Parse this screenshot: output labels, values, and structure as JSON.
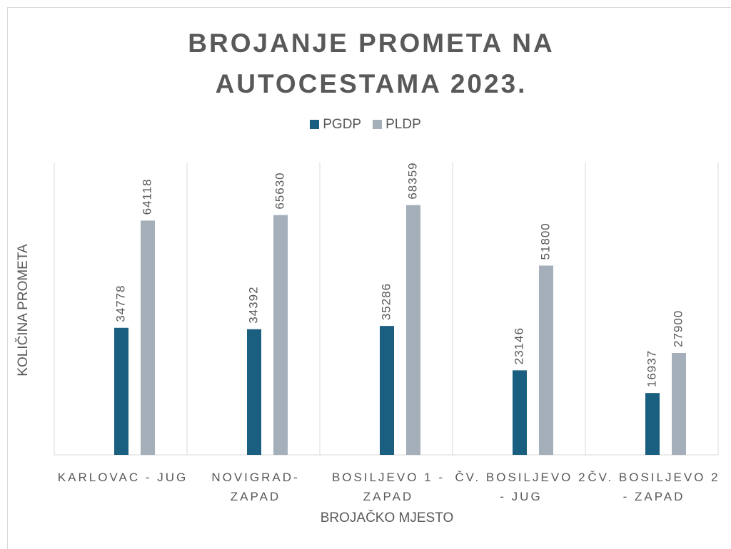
{
  "chart_data": {
    "type": "bar",
    "title": "BROJANJE PROMETA NA AUTOCESTAMA 2023.",
    "xlabel": "BROJAČKO MJESTO",
    "ylabel": "KOLIČINA PROMETA",
    "categories": [
      "KARLOVAC - JUG",
      "NOVIGRAD-ZAPAD",
      "BOSILJEVO 1 - ZAPAD",
      "ČV. BOSILJEVO 2 - JUG",
      "ČV. BOSILJEVO 2 - ZAPAD"
    ],
    "series": [
      {
        "name": "PGDP",
        "color": "#1a5f80",
        "values": [
          34778,
          34392,
          35286,
          23146,
          16937
        ]
      },
      {
        "name": "PLDP",
        "color": "#a4afba",
        "values": [
          64118,
          65630,
          68359,
          51800,
          27900
        ]
      }
    ],
    "ylim": [
      0,
      80000
    ],
    "legend": "top"
  }
}
